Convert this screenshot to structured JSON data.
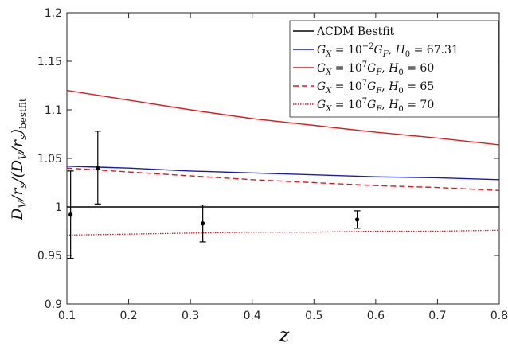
{
  "chart_data": {
    "type": "line",
    "title": "",
    "xlabel": "z",
    "ylabel": "D_V/r_s/(D_V/r_s)_bestfit",
    "xlim": [
      0.1,
      0.8
    ],
    "ylim": [
      0.9,
      1.2
    ],
    "x_ticks": [
      "0.1",
      "0.2",
      "0.3",
      "0.4",
      "0.5",
      "0.6",
      "0.7",
      "0.8"
    ],
    "y_ticks": [
      "0.9",
      "0.95",
      "1",
      "1.05",
      "1.1",
      "1.15",
      "1.2"
    ],
    "grid": false,
    "legend_position": "top-right",
    "series": [
      {
        "name": "ΛCDM Bestfit",
        "color": "#000000",
        "style": "solid",
        "x": [
          0.1,
          0.8
        ],
        "y": [
          1.0,
          1.0
        ]
      },
      {
        "name": "G_X = 10^-2 G_F, H_0 = 67.31",
        "color": "#1a1ab8",
        "style": "solid",
        "x": [
          0.1,
          0.15,
          0.2,
          0.3,
          0.4,
          0.5,
          0.6,
          0.7,
          0.8
        ],
        "y": [
          1.042,
          1.041,
          1.04,
          1.037,
          1.035,
          1.033,
          1.031,
          1.03,
          1.028
        ]
      },
      {
        "name": "G_X = 10^7 G_F, H_0 = 60",
        "color": "#e0191c",
        "style": "solid",
        "x": [
          0.1,
          0.15,
          0.2,
          0.3,
          0.4,
          0.5,
          0.6,
          0.7,
          0.8
        ],
        "y": [
          1.12,
          1.115,
          1.11,
          1.1,
          1.091,
          1.084,
          1.077,
          1.071,
          1.064
        ]
      },
      {
        "name": "G_X = 10^7 G_F, H_0 = 65",
        "color": "#e0191c",
        "style": "dashed",
        "x": [
          0.1,
          0.15,
          0.2,
          0.3,
          0.4,
          0.5,
          0.6,
          0.7,
          0.8
        ],
        "y": [
          1.04,
          1.038,
          1.036,
          1.032,
          1.028,
          1.025,
          1.022,
          1.02,
          1.017
        ]
      },
      {
        "name": "G_X = 10^7 G_F, H_0 = 70",
        "color": "#e0191c",
        "style": "dotted",
        "x": [
          0.1,
          0.2,
          0.3,
          0.4,
          0.5,
          0.6,
          0.7,
          0.8
        ],
        "y": [
          0.971,
          0.972,
          0.973,
          0.974,
          0.974,
          0.975,
          0.975,
          0.976
        ]
      }
    ],
    "data_points": [
      {
        "x": 0.106,
        "y": 0.992,
        "err_low": 0.947,
        "err_high": 1.037
      },
      {
        "x": 0.15,
        "y": 1.04,
        "err_low": 1.003,
        "err_high": 1.078
      },
      {
        "x": 0.32,
        "y": 0.983,
        "err_low": 0.964,
        "err_high": 1.002
      },
      {
        "x": 0.57,
        "y": 0.987,
        "err_low": 0.978,
        "err_high": 0.996
      }
    ]
  }
}
